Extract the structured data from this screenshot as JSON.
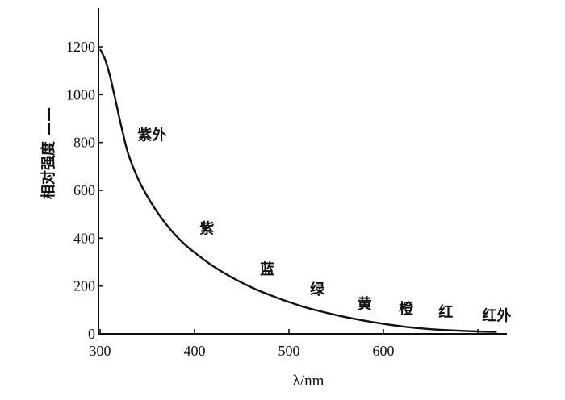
{
  "chart_data": {
    "type": "line",
    "ylabel": "相对强度 ——",
    "xlabel": "λ/nm",
    "xlim": [
      300,
      730
    ],
    "ylim": [
      0,
      1200
    ],
    "x_ticks": [
      300,
      400,
      500,
      600,
      700
    ],
    "x_tick_labels": [
      "300",
      "400",
      "500",
      "600",
      ""
    ],
    "y_ticks": [
      0,
      200,
      400,
      600,
      800,
      1000,
      1200
    ],
    "y_tick_labels": [
      "0",
      "200",
      "400",
      "600",
      "800",
      "1000",
      "1200"
    ],
    "series": [
      {
        "x": [
          300,
          305,
          310,
          315,
          320,
          325,
          330,
          340,
          350,
          360,
          370,
          380,
          390,
          400,
          420,
          440,
          460,
          480,
          500,
          520,
          540,
          560,
          580,
          600,
          620,
          640,
          660,
          680,
          700,
          720
        ],
        "y": [
          1190,
          1150,
          1085,
          1000,
          910,
          825,
          750,
          650,
          575,
          512,
          458,
          412,
          373,
          340,
          282,
          235,
          195,
          162,
          133,
          108,
          88,
          70,
          55,
          42,
          31,
          23,
          17,
          13,
          10,
          8
        ]
      }
    ],
    "annotations": [
      {
        "text": "紫外",
        "x": 355,
        "y": 810
      },
      {
        "text": "紫",
        "x": 413,
        "y": 420
      },
      {
        "text": "蓝",
        "x": 477,
        "y": 250
      },
      {
        "text": "绿",
        "x": 530,
        "y": 165
      },
      {
        "text": "黄",
        "x": 580,
        "y": 105
      },
      {
        "text": "橙",
        "x": 624,
        "y": 85
      },
      {
        "text": "红",
        "x": 666,
        "y": 70
      },
      {
        "text": "红外",
        "x": 720,
        "y": 55
      }
    ],
    "grid": false
  }
}
